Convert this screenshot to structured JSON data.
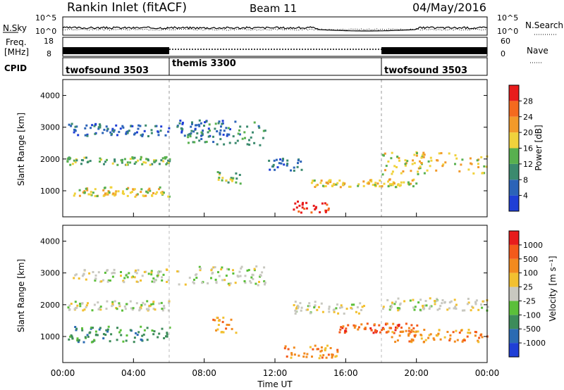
{
  "header": {
    "title": "Rankin Inlet (fitACF)",
    "beam": "Beam 11",
    "date": "04/May/2016"
  },
  "noise_panel": {
    "left_label": "N.Sky",
    "right_label": "N.Search",
    "ticks_left": [
      "10^5",
      "10^0"
    ],
    "ticks_right": [
      "10^5",
      "10^0"
    ]
  },
  "freq_panel": {
    "left_label_1": "Freq.",
    "left_label_2": "[MHz]",
    "right_label": "Nave",
    "ticks_left": [
      "18",
      "8"
    ],
    "ticks_right": [
      "60",
      "0"
    ]
  },
  "cpid_panel": {
    "label": "CPID",
    "segments": [
      {
        "name": "twofsound 3503",
        "start_hour": 0,
        "end_hour": 6
      },
      {
        "name": "themis 3300",
        "start_hour": 6,
        "end_hour": 18
      },
      {
        "name": "twofsound 3503",
        "start_hour": 18,
        "end_hour": 24
      }
    ]
  },
  "chart_data": [
    {
      "type": "heatmap",
      "title": "",
      "xlabel": "Time UT",
      "ylabel": "Slant Range [km]",
      "xlim": [
        0,
        24
      ],
      "ylim": [
        180,
        4500
      ],
      "xticks": [
        "00:00",
        "04:00",
        "08:00",
        "12:00",
        "16:00",
        "20:00",
        "00:00"
      ],
      "yticks": [
        1000,
        2000,
        3000,
        4000
      ],
      "colorbar": {
        "label": "Power [dB]",
        "ticks": [
          "4",
          "8",
          "12",
          "16",
          "20",
          "24",
          "28"
        ],
        "colors": [
          "#1f3fd6",
          "#2b63b8",
          "#3b8a6e",
          "#58b04f",
          "#f0d23c",
          "#f29a2a",
          "#f46a1e",
          "#e81c1c"
        ]
      },
      "features": [
        {
          "t0": 0.2,
          "t1": 6.0,
          "r0": 800,
          "r1": 1100,
          "level": 4
        },
        {
          "t0": 0.2,
          "t1": 6.0,
          "r0": 1800,
          "r1": 2050,
          "level": 3
        },
        {
          "t0": 0.3,
          "t1": 6.0,
          "r0": 2700,
          "r1": 3100,
          "level": 1
        },
        {
          "t0": 6.3,
          "t1": 9.5,
          "r0": 2700,
          "r1": 3200,
          "level": 1
        },
        {
          "t0": 7.0,
          "t1": 11.5,
          "r0": 2400,
          "r1": 3200,
          "level": 2
        },
        {
          "t0": 8.5,
          "t1": 10.0,
          "r0": 1200,
          "r1": 1600,
          "level": 3
        },
        {
          "t0": 11.5,
          "t1": 13.5,
          "r0": 1600,
          "r1": 2000,
          "level": 1
        },
        {
          "t0": 13.0,
          "t1": 15.0,
          "r0": 300,
          "r1": 650,
          "level": 7
        },
        {
          "t0": 14.0,
          "t1": 20.0,
          "r0": 1100,
          "r1": 1350,
          "level": 4
        },
        {
          "t0": 18.0,
          "t1": 24.0,
          "r0": 1500,
          "r1": 2200,
          "level": 4
        }
      ]
    },
    {
      "type": "heatmap",
      "title": "",
      "xlabel": "Time UT",
      "ylabel": "Slant Range [km]",
      "xlim": [
        0,
        24
      ],
      "ylim": [
        180,
        4500
      ],
      "xticks": [
        "00:00",
        "04:00",
        "08:00",
        "12:00",
        "16:00",
        "20:00",
        "00:00"
      ],
      "yticks": [
        1000,
        2000,
        3000,
        4000
      ],
      "colorbar": {
        "label": "Velocity [m s⁻¹]",
        "ticks": [
          "1000",
          "500",
          "100",
          "25",
          "-25",
          "-100",
          "-500",
          "-1000"
        ],
        "colors": [
          "#1f3fd6",
          "#2b6bb3",
          "#3d8c5a",
          "#5bbf3a",
          "#c8c8c0",
          "#f2c030",
          "#f28a1e",
          "#f45a1a",
          "#e81c1c"
        ]
      },
      "features": [
        {
          "t0": 0.2,
          "t1": 6.0,
          "r0": 800,
          "r1": 1300,
          "level": 2
        },
        {
          "t0": 0.2,
          "t1": 6.0,
          "r0": 1800,
          "r1": 2100,
          "level": 4
        },
        {
          "t0": 0.5,
          "t1": 6.0,
          "r0": 2700,
          "r1": 3100,
          "level": 4
        },
        {
          "t0": 6.3,
          "t1": 11.5,
          "r0": 2600,
          "r1": 3200,
          "level": 4
        },
        {
          "t0": 8.3,
          "t1": 9.8,
          "r0": 1100,
          "r1": 1600,
          "level": 6
        },
        {
          "t0": 12.5,
          "t1": 15.5,
          "r0": 300,
          "r1": 700,
          "level": 6
        },
        {
          "t0": 13.0,
          "t1": 17.0,
          "r0": 1700,
          "r1": 2100,
          "level": 4
        },
        {
          "t0": 15.5,
          "t1": 20.0,
          "r0": 1100,
          "r1": 1400,
          "level": 7
        },
        {
          "t0": 18.0,
          "t1": 24.0,
          "r0": 1800,
          "r1": 2200,
          "level": 4
        },
        {
          "t0": 18.5,
          "t1": 24.0,
          "r0": 800,
          "r1": 1200,
          "level": 6
        }
      ]
    }
  ]
}
